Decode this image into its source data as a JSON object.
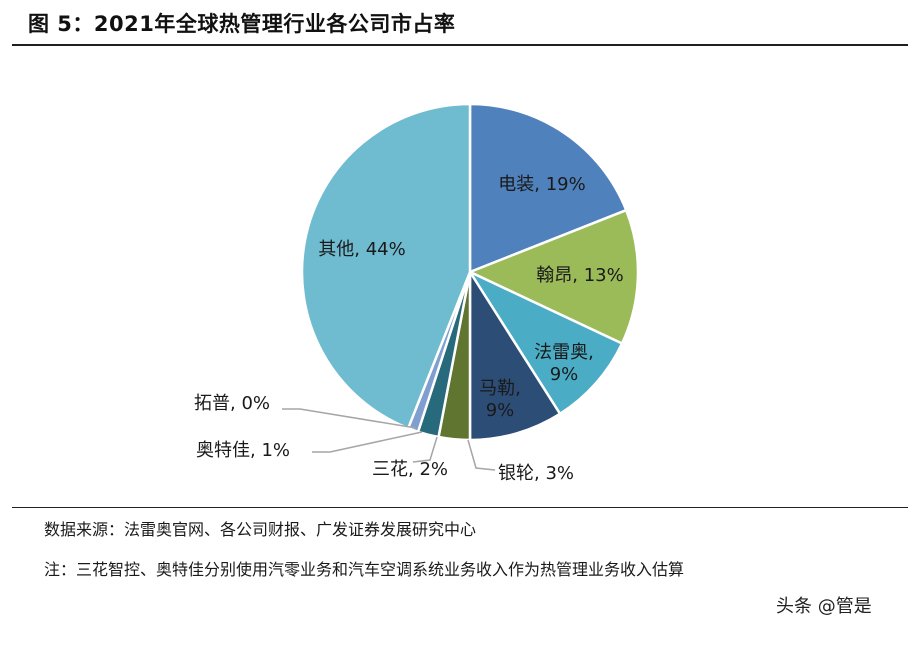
{
  "header": {
    "title": "图 5：2021年全球热管理行业各公司市占率"
  },
  "chart_data": {
    "type": "pie",
    "title": "",
    "slices": [
      {
        "name": "电装",
        "value": 19,
        "label": "电装, 19%",
        "color": "#4f81bd"
      },
      {
        "name": "翰昂",
        "value": 13,
        "label": "翰昂, 13%",
        "color": "#9bbb59"
      },
      {
        "name": "法雷奥",
        "value": 9,
        "label_lines": [
          "法雷奥,",
          "9%"
        ],
        "color": "#4bacc6"
      },
      {
        "name": "马勒",
        "value": 9,
        "label_lines": [
          "马勒,",
          "9%"
        ],
        "color": "#2c4d75"
      },
      {
        "name": "银轮",
        "value": 3,
        "label": "银轮, 3%",
        "color": "#5f7530"
      },
      {
        "name": "三花",
        "value": 2,
        "label": "三花, 2%",
        "color": "#276a7c"
      },
      {
        "name": "奥特佳",
        "value": 1,
        "label": "奥特佳, 1%",
        "color": "#7f9fd0"
      },
      {
        "name": "拓普",
        "value": 0,
        "label": "拓普, 0%",
        "color": "#c4d79b"
      },
      {
        "name": "其他",
        "value": 44,
        "label": "其他, 44%",
        "color": "#6fbbd0"
      }
    ],
    "start_angle_deg": 0,
    "direction": "clockwise"
  },
  "footer": {
    "source": "数据来源：法雷奥官网、各公司财报、广发证券发展研究中心",
    "note": "注：三花智控、奥特佳分别使用汽零业务和汽车空调系统业务收入作为热管理业务收入估算"
  },
  "watermark": {
    "text": "头条 @管是"
  }
}
